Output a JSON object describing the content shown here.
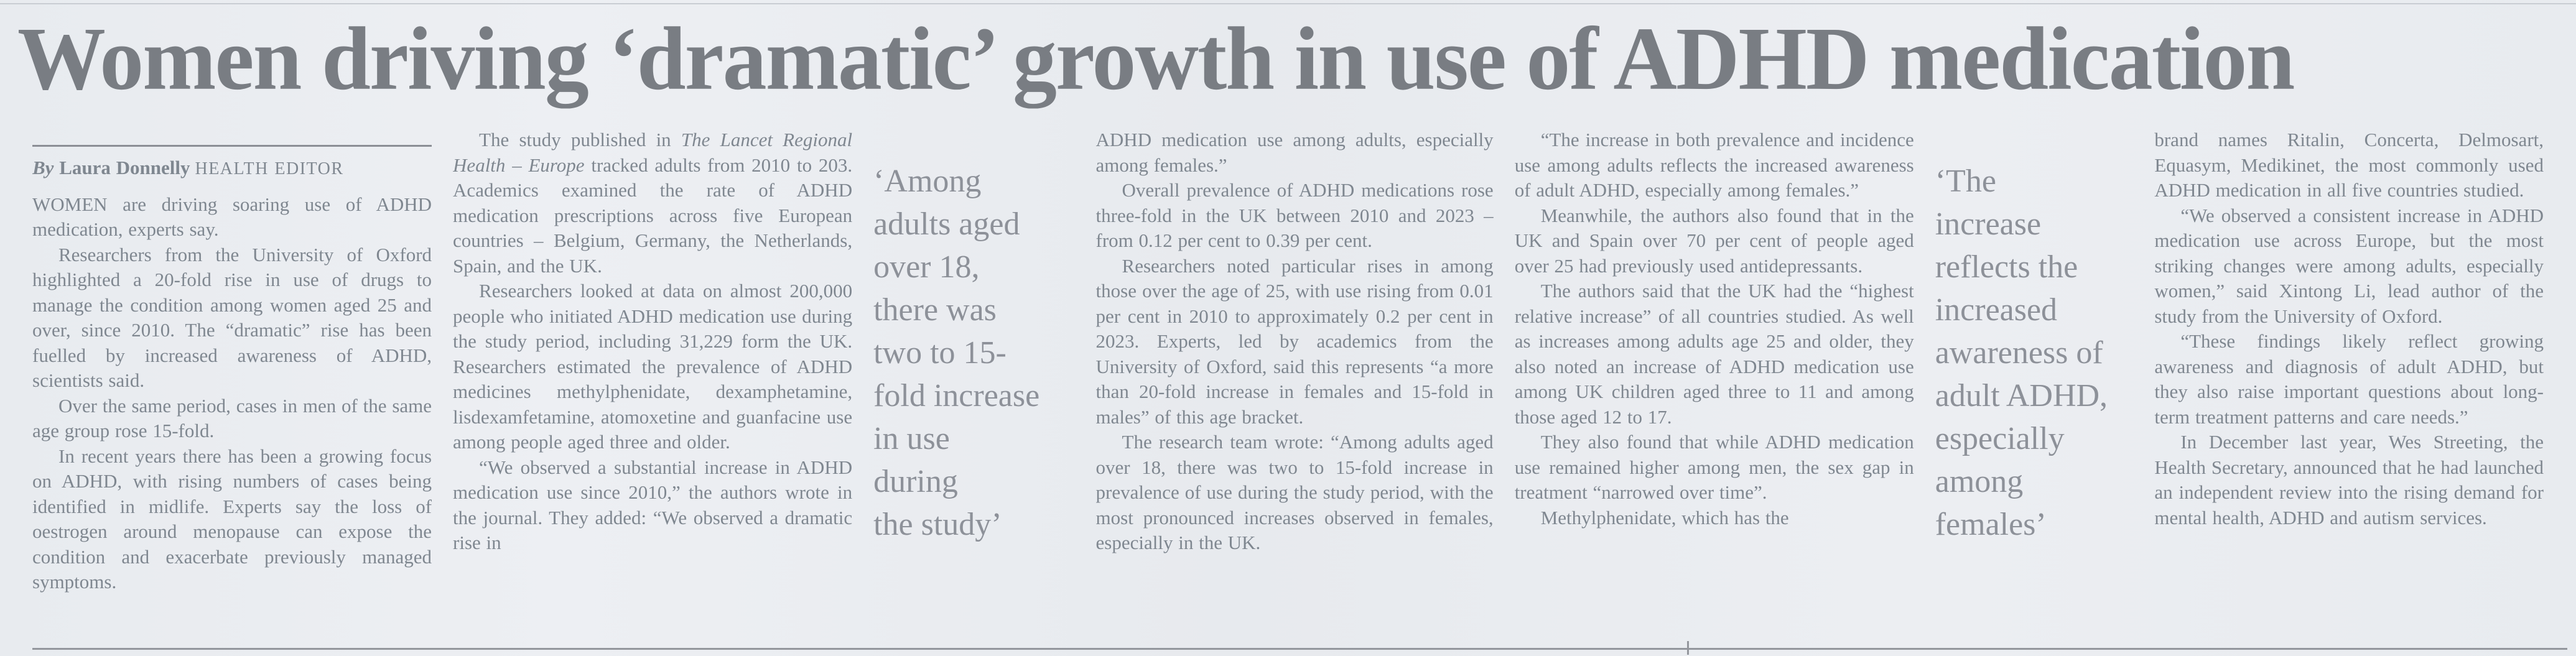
{
  "headline": "Women driving ‘dramatic’ growth in use of ADHD medication",
  "byline": {
    "by": "By",
    "author": "Laura Donnelly",
    "role": "HEALTH EDITOR"
  },
  "col1": {
    "p1": "WOMEN are driving soaring use of ADHD medication, experts say.",
    "p2": "Researchers from the University of Oxford highlighted a 20-fold rise in use of drugs to manage the condition among women aged 25 and over, since 2010. The “dramatic” rise has been fuelled by increased awareness of ADHD, scientists said.",
    "p3": "Over the same period, cases in men of the same age group rose 15-fold.",
    "p4": "In recent years there has been a growing focus on ADHD, with rising numbers of cases being identified in midlife. Experts say the loss of oestrogen around menopause can expose the condition and exacerbate previously managed symptoms."
  },
  "col2": {
    "p1_before": "The study published in ",
    "p1_italic": "The Lancet Regional Health – Europe",
    "p1_after": " tracked adults from 2010 to 203. Academics examined the rate of ADHD medication prescriptions across five European countries – Belgium, Germany, the Netherlands, Spain, and the UK.",
    "p2": "Researchers looked at data on almost 200,000 people who initiated ADHD medication use during the study period, including 31,229 form the UK. Researchers estimated the prevalence of ADHD medicines methylphenidate, dexamphetamine, lisdexamfetamine, atomoxetine and guanfacine use among people aged three and older.",
    "p3": "“We observed a substantial increase in ADHD medication use since 2010,” the authors wrote in the journal. They added: “We observed a dramatic rise in"
  },
  "quote1": "‘Among\nadults aged\nover 18,\nthere was\ntwo to 15-\nfold increase\nin use\nduring\nthe study’",
  "col3": {
    "p1": "ADHD medication use among adults, especially among females.”",
    "p2": "Overall prevalence of ADHD medications rose three-fold in the UK between 2010 and 2023 – from 0.12 per cent to 0.39 per cent.",
    "p3": "Researchers noted particular rises in among those over the age of 25, with use rising from 0.01 per cent in 2010 to approximately 0.2 per cent in 2023. Experts, led by academics from the University of Oxford, said this represents “a more than 20-fold increase in females and 15-fold in males” of this age bracket.",
    "p4": "The research team wrote: “Among adults aged over 18, there was two to 15-fold increase in prevalence of use during the study period, with the most pronounced increases observed in females, especially in the UK."
  },
  "col4": {
    "p1": "“The increase in both prevalence and incidence use among adults reflects the increased awareness of adult ADHD, especially among females.”",
    "p2": "Meanwhile, the authors also found that in the UK and Spain over 70 per cent of people aged over 25 had previously used antidepressants.",
    "p3": "The authors said that the UK had the “highest relative increase” of all countries studied. As well as increases among adults age 25 and older, they also noted an increase of ADHD medication use among UK children aged three to 11 and among those aged 12 to 17.",
    "p4": "They also found that while ADHD medication use remained higher among men, the sex gap in treatment “narrowed over time”.",
    "p5": "Methylphenidate, which has the"
  },
  "quote2": "‘The\nincrease\nreflects the\nincreased\nawareness of\nadult ADHD,\nespecially\namong\nfemales’",
  "col5": {
    "p1": "brand names Ritalin, Concerta, Delmosart, Equasym, Medikinet, the most commonly used ADHD medication in all five countries studied.",
    "p2": "“We observed a consistent increase in ADHD medication use across Europe, but the most striking changes were among adults, especially women,” said Xintong Li, lead author of the study from the University of Oxford.",
    "p3": "“These findings likely reflect growing awareness and diagnosis of adult ADHD, but they also raise important questions about long-term treatment patterns and care needs.”",
    "p4": "In December last year, Wes Streeting, the Health Secretary, announced that he had launched an independent review into the rising demand for mental health, ADHD and autism services."
  },
  "colors": {
    "paper": "#e9ecf0",
    "body_text": "#7f8790",
    "headline_text": "#797d83",
    "rule": "#94979d"
  }
}
